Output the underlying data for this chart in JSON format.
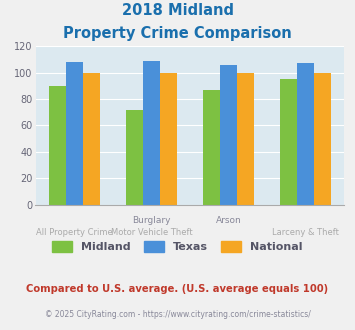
{
  "title_line1": "2018 Midland",
  "title_line2": "Property Crime Comparison",
  "title_color": "#1a6fad",
  "series": {
    "Midland": [
      90,
      72,
      87,
      95
    ],
    "Texas": [
      108,
      109,
      106,
      107
    ],
    "National": [
      100,
      100,
      100,
      100
    ]
  },
  "colors": {
    "Midland": "#7dc142",
    "Texas": "#4a90d9",
    "National": "#f5a623"
  },
  "top_xlabels": [
    "",
    "Burglary",
    "Arson",
    ""
  ],
  "bottom_xlabels": [
    "All Property Crime",
    "Motor Vehicle Theft",
    "",
    "Larceny & Theft"
  ],
  "ylim": [
    0,
    120
  ],
  "yticks": [
    0,
    20,
    40,
    60,
    80,
    100,
    120
  ],
  "bar_width": 0.22,
  "plot_bg": "#dce9f0",
  "grid_color": "#ffffff",
  "legend_labels": [
    "Midland",
    "Texas",
    "National"
  ],
  "footnote1": "Compared to U.S. average. (U.S. average equals 100)",
  "footnote2": "© 2025 CityRating.com - https://www.cityrating.com/crime-statistics/",
  "footnote1_color": "#c0392b",
  "footnote2_color": "#888899"
}
